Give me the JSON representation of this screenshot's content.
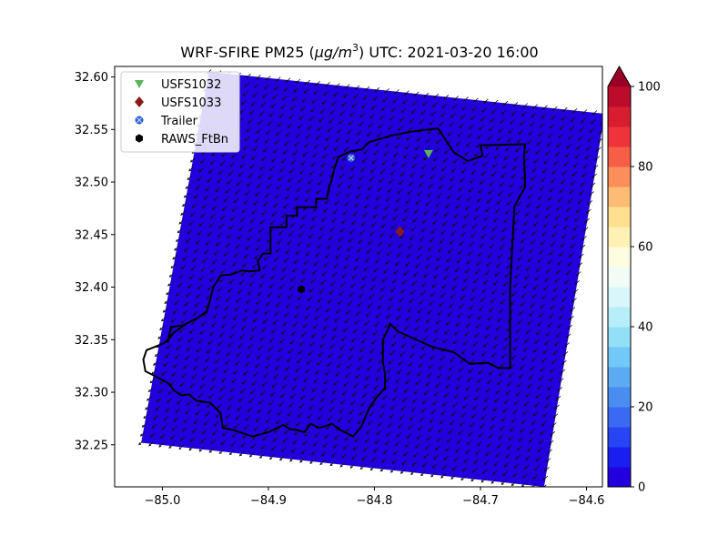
{
  "chart_data": {
    "type": "heatmap",
    "title_prefix": "WRF-SFIRE PM25 (",
    "title_units": "μg/m",
    "title_sup": "3",
    "title_suffix": ") UTC: 2021-03-20 16:00",
    "xlim": [
      -85.045,
      -84.585
    ],
    "ylim": [
      32.21,
      32.61
    ],
    "x_ticks": [
      {
        "value": -85.0,
        "label": "−85.0"
      },
      {
        "value": -84.9,
        "label": "−84.9"
      },
      {
        "value": -84.8,
        "label": "−84.8"
      },
      {
        "value": -84.7,
        "label": "−84.7"
      },
      {
        "value": -84.6,
        "label": "−84.6"
      }
    ],
    "y_ticks": [
      {
        "value": 32.25,
        "label": "32.25"
      },
      {
        "value": 32.3,
        "label": "32.30"
      },
      {
        "value": 32.35,
        "label": "32.35"
      },
      {
        "value": 32.4,
        "label": "32.40"
      },
      {
        "value": 32.45,
        "label": "32.45"
      },
      {
        "value": 32.5,
        "label": "32.50"
      },
      {
        "value": 32.55,
        "label": "32.55"
      },
      {
        "value": 32.6,
        "label": "32.60"
      }
    ],
    "field_value": 0,
    "domain_corners": [
      [
        -84.956,
        32.605
      ],
      [
        -84.583,
        32.565
      ],
      [
        -84.64,
        32.21
      ],
      [
        -85.02,
        32.252
      ]
    ],
    "boundary": [
      [
        -84.74,
        32.551
      ],
      [
        -84.765,
        32.548
      ],
      [
        -84.785,
        32.544
      ],
      [
        -84.805,
        32.538
      ],
      [
        -84.812,
        32.531
      ],
      [
        -84.823,
        32.529
      ],
      [
        -84.834,
        32.524
      ],
      [
        -84.838,
        32.512
      ],
      [
        -84.84,
        32.503
      ],
      [
        -84.843,
        32.494
      ],
      [
        -84.845,
        32.484
      ],
      [
        -84.855,
        32.484
      ],
      [
        -84.855,
        32.476
      ],
      [
        -84.873,
        32.476
      ],
      [
        -84.873,
        32.468
      ],
      [
        -84.883,
        32.468
      ],
      [
        -84.883,
        32.457
      ],
      [
        -84.898,
        32.457
      ],
      [
        -84.898,
        32.432
      ],
      [
        -84.905,
        32.432
      ],
      [
        -84.91,
        32.425
      ],
      [
        -84.908,
        32.416
      ],
      [
        -84.918,
        32.415
      ],
      [
        -84.925,
        32.416
      ],
      [
        -84.935,
        32.412
      ],
      [
        -84.945,
        32.411
      ],
      [
        -84.952,
        32.4
      ],
      [
        -84.955,
        32.388
      ],
      [
        -84.958,
        32.377
      ],
      [
        -84.968,
        32.37
      ],
      [
        -84.978,
        32.365
      ],
      [
        -84.99,
        32.356
      ],
      [
        -84.998,
        32.347
      ],
      [
        -85.005,
        32.344
      ],
      [
        -85.015,
        32.34
      ],
      [
        -85.018,
        32.331
      ],
      [
        -85.016,
        32.32
      ],
      [
        -85.008,
        32.316
      ],
      [
        -84.995,
        32.309
      ],
      [
        -84.988,
        32.301
      ],
      [
        -84.982,
        32.297
      ],
      [
        -84.975,
        32.298
      ],
      [
        -84.968,
        32.292
      ],
      [
        -84.955,
        32.29
      ],
      [
        -84.945,
        32.28
      ],
      [
        -84.943,
        32.266
      ],
      [
        -84.933,
        32.264
      ],
      [
        -84.927,
        32.262
      ],
      [
        -84.915,
        32.258
      ],
      [
        -84.9,
        32.262
      ],
      [
        -84.886,
        32.269
      ],
      [
        -84.88,
        32.265
      ],
      [
        -84.873,
        32.264
      ],
      [
        -84.866,
        32.262
      ],
      [
        -84.86,
        32.27
      ],
      [
        -84.852,
        32.266
      ],
      [
        -84.84,
        32.27
      ],
      [
        -84.832,
        32.264
      ],
      [
        -84.82,
        32.258
      ],
      [
        -84.812,
        32.268
      ],
      [
        -84.805,
        32.285
      ],
      [
        -84.798,
        32.295
      ],
      [
        -84.79,
        32.304
      ],
      [
        -84.79,
        32.318
      ],
      [
        -84.792,
        32.328
      ],
      [
        -84.792,
        32.35
      ],
      [
        -84.785,
        32.365
      ],
      [
        -84.778,
        32.358
      ],
      [
        -84.765,
        32.352
      ],
      [
        -84.745,
        32.343
      ],
      [
        -84.725,
        32.338
      ],
      [
        -84.71,
        32.327
      ],
      [
        -84.693,
        32.328
      ],
      [
        -84.683,
        32.323
      ],
      [
        -84.672,
        32.323
      ],
      [
        -84.672,
        32.4
      ],
      [
        -84.668,
        32.477
      ],
      [
        -84.658,
        32.495
      ],
      [
        -84.658,
        32.505
      ],
      [
        -84.659,
        32.522
      ],
      [
        -84.658,
        32.536
      ],
      [
        -84.7,
        32.535
      ],
      [
        -84.698,
        32.525
      ],
      [
        -84.712,
        32.52
      ],
      [
        -84.725,
        32.528
      ],
      [
        -84.74,
        32.551
      ]
    ],
    "boundary_extra": [
      [
        -84.995,
        32.347
      ],
      [
        -84.992,
        32.362
      ],
      [
        -84.978,
        32.364
      ]
    ],
    "markers": [
      {
        "name": "USFS1032",
        "x": -84.749,
        "y": 32.527,
        "shape": "triangle-down",
        "color": "#5ab55a"
      },
      {
        "name": "USFS1033",
        "x": -84.776,
        "y": 32.453,
        "shape": "diamond",
        "color": "#8b1a1a"
      },
      {
        "name": "Trailer",
        "x": -84.822,
        "y": 32.523,
        "shape": "circle-x",
        "color": "#2f5fd6"
      },
      {
        "name": "RAWS_FtBn",
        "x": -84.869,
        "y": 32.398,
        "shape": "hexagon",
        "color": "#000000"
      }
    ],
    "legend_position": "top-left",
    "colorbar": {
      "min": 0,
      "max": 100,
      "ticks": [
        0,
        20,
        40,
        60,
        80,
        100
      ],
      "tick_labels": [
        "0",
        "20",
        "40",
        "60",
        "80",
        "100"
      ],
      "extend": "max",
      "over_color": "#9a0026",
      "colors": [
        "#2200dd",
        "#1a1ef0",
        "#2745f5",
        "#3b6af2",
        "#4a8df0",
        "#5caaf2",
        "#72c8f6",
        "#92e0f8",
        "#b6eef9",
        "#d9f7fb",
        "#f2fcf6",
        "#fffde0",
        "#fff0b4",
        "#fee090",
        "#fdbb74",
        "#fb8e5a",
        "#f65e46",
        "#ee343a",
        "#d81e2e",
        "#bb0c2c"
      ]
    },
    "wind_vector": {
      "u": -0.6,
      "v": -0.55
    }
  }
}
